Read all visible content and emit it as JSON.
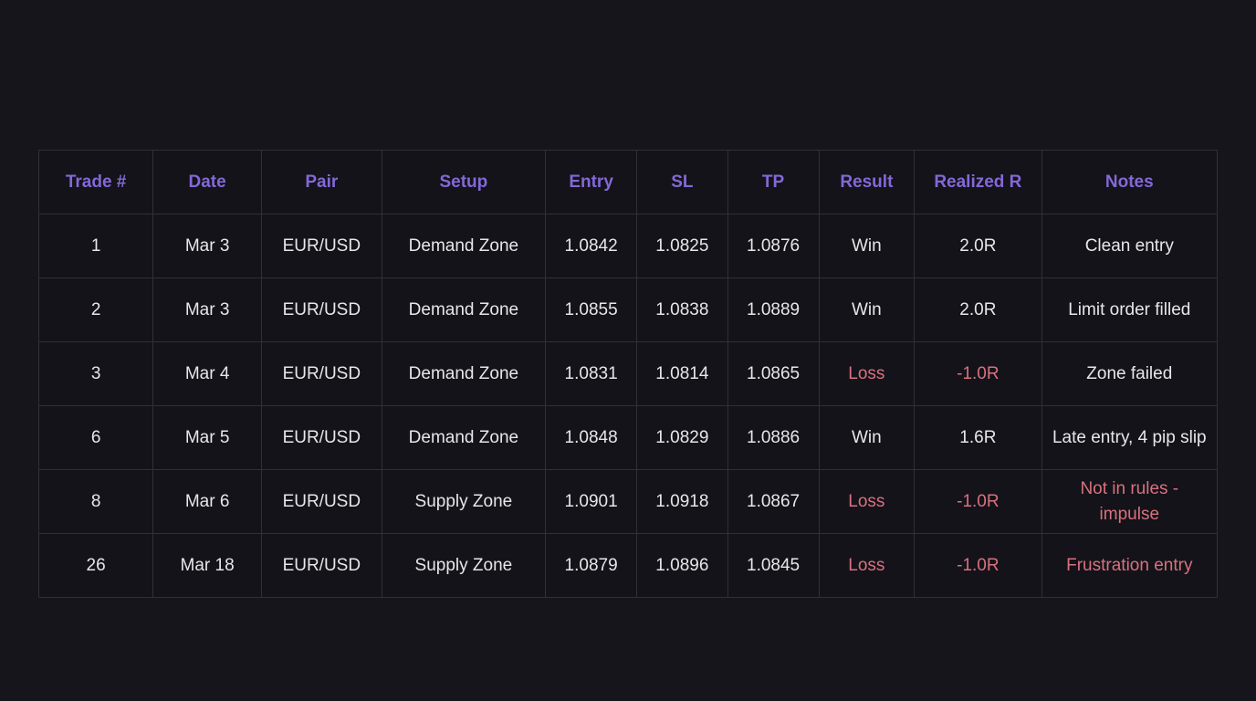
{
  "colors": {
    "page_bg": "#15151b",
    "cell_bg": "#131319",
    "border": "#30303a",
    "header_text": "#8468d8",
    "body_text": "#e7e7ea",
    "loss_text": "#d9717f"
  },
  "table": {
    "columns": [
      {
        "key": "trade",
        "label": "Trade #"
      },
      {
        "key": "date",
        "label": "Date"
      },
      {
        "key": "pair",
        "label": "Pair"
      },
      {
        "key": "setup",
        "label": "Setup"
      },
      {
        "key": "entry",
        "label": "Entry"
      },
      {
        "key": "sl",
        "label": "SL"
      },
      {
        "key": "tp",
        "label": "TP"
      },
      {
        "key": "result",
        "label": "Result"
      },
      {
        "key": "realized_r",
        "label": "Realized R"
      },
      {
        "key": "notes",
        "label": "Notes"
      }
    ],
    "rows": [
      {
        "trade": "1",
        "date": "Mar 3",
        "pair": "EUR/USD",
        "setup": "Demand Zone",
        "entry": "1.0842",
        "sl": "1.0825",
        "tp": "1.0876",
        "result": "Win",
        "realized_r": "2.0R",
        "notes": "Clean entry",
        "result_status": "win",
        "notes_status": "normal"
      },
      {
        "trade": "2",
        "date": "Mar 3",
        "pair": "EUR/USD",
        "setup": "Demand Zone",
        "entry": "1.0855",
        "sl": "1.0838",
        "tp": "1.0889",
        "result": "Win",
        "realized_r": "2.0R",
        "notes": "Limit order filled",
        "result_status": "win",
        "notes_status": "normal"
      },
      {
        "trade": "3",
        "date": "Mar 4",
        "pair": "EUR/USD",
        "setup": "Demand Zone",
        "entry": "1.0831",
        "sl": "1.0814",
        "tp": "1.0865",
        "result": "Loss",
        "realized_r": "-1.0R",
        "notes": "Zone failed",
        "result_status": "loss",
        "notes_status": "normal"
      },
      {
        "trade": "6",
        "date": "Mar 5",
        "pair": "EUR/USD",
        "setup": "Demand Zone",
        "entry": "1.0848",
        "sl": "1.0829",
        "tp": "1.0886",
        "result": "Win",
        "realized_r": "1.6R",
        "notes": "Late entry, 4 pip slip",
        "result_status": "win",
        "notes_status": "normal"
      },
      {
        "trade": "8",
        "date": "Mar 6",
        "pair": "EUR/USD",
        "setup": "Supply Zone",
        "entry": "1.0901",
        "sl": "1.0918",
        "tp": "1.0867",
        "result": "Loss",
        "realized_r": "-1.0R",
        "notes": "Not in rules - impulse",
        "result_status": "loss",
        "notes_status": "alert"
      },
      {
        "trade": "26",
        "date": "Mar 18",
        "pair": "EUR/USD",
        "setup": "Supply Zone",
        "entry": "1.0879",
        "sl": "1.0896",
        "tp": "1.0845",
        "result": "Loss",
        "realized_r": "-1.0R",
        "notes": "Frustration entry",
        "result_status": "loss",
        "notes_status": "alert"
      }
    ]
  }
}
